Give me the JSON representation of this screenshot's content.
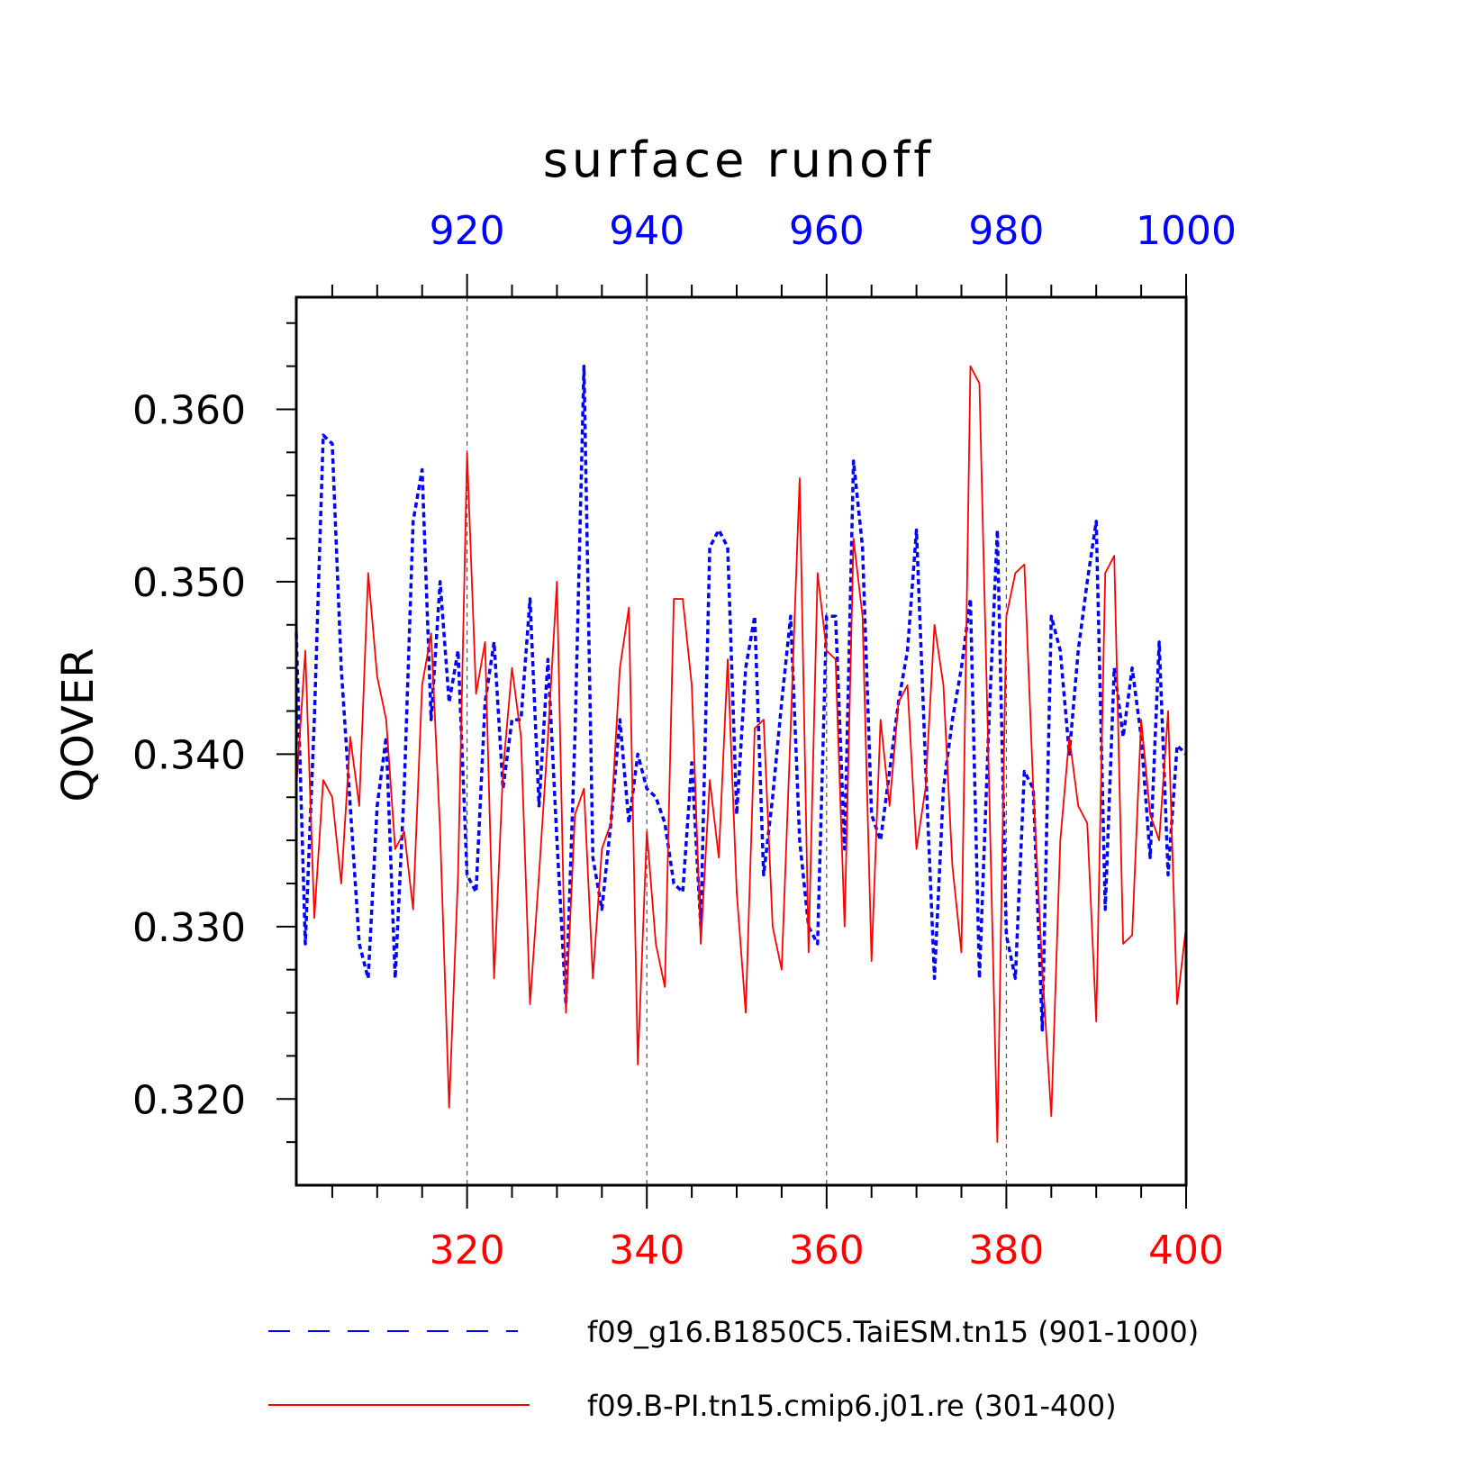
{
  "chart_data": {
    "type": "line",
    "title": "surface runoff",
    "ylabel": "QOVER",
    "ylim": [
      0.315,
      0.3665
    ],
    "y_ticks": [
      "0.320",
      "0.330",
      "0.340",
      "0.350",
      "0.360"
    ],
    "y_tick_values": [
      0.32,
      0.33,
      0.34,
      0.35,
      0.36
    ],
    "grid": "vertical dashed at major x ticks",
    "legend_position": "bottom",
    "axes": {
      "bottom": {
        "range": [
          301,
          400
        ],
        "ticks": [
          320,
          340,
          360,
          380,
          400
        ],
        "color": "#ff0000"
      },
      "top": {
        "range": [
          901,
          1000
        ],
        "ticks": [
          920,
          940,
          960,
          980,
          1000
        ],
        "color": "#0000ff"
      }
    },
    "series": [
      {
        "name": "f09_g16.B1850C5.TaiESM.tn15 (901-1000)",
        "axis": "top",
        "color": "#0000ff",
        "style": "dashed",
        "x_start": 901,
        "values": [
          0.347,
          0.329,
          0.342,
          0.3585,
          0.358,
          0.345,
          0.337,
          0.329,
          0.327,
          0.337,
          0.341,
          0.327,
          0.338,
          0.3535,
          0.3565,
          0.342,
          0.35,
          0.343,
          0.346,
          0.333,
          0.332,
          0.343,
          0.3465,
          0.338,
          0.342,
          0.342,
          0.349,
          0.337,
          0.3455,
          0.335,
          0.3255,
          0.341,
          0.3625,
          0.334,
          0.331,
          0.336,
          0.342,
          0.336,
          0.34,
          0.338,
          0.3375,
          0.336,
          0.3325,
          0.332,
          0.3395,
          0.33,
          0.352,
          0.353,
          0.352,
          0.3365,
          0.345,
          0.348,
          0.333,
          0.3375,
          0.343,
          0.348,
          0.335,
          0.33,
          0.329,
          0.348,
          0.348,
          0.3345,
          0.357,
          0.352,
          0.3365,
          0.335,
          0.339,
          0.343,
          0.346,
          0.353,
          0.3395,
          0.327,
          0.338,
          0.342,
          0.345,
          0.349,
          0.327,
          0.341,
          0.353,
          0.3295,
          0.327,
          0.339,
          0.338,
          0.324,
          0.348,
          0.346,
          0.34,
          0.346,
          0.35,
          0.3535,
          0.331,
          0.345,
          0.341,
          0.345,
          0.341,
          0.334,
          0.3465,
          0.333,
          0.3405,
          0.34
        ]
      },
      {
        "name": "f09.B-PI.tn15.cmip6.j01.re (301-400)",
        "axis": "bottom",
        "color": "#ff0000",
        "style": "solid",
        "x_start": 301,
        "values": [
          0.338,
          0.346,
          0.3305,
          0.3385,
          0.3375,
          0.3325,
          0.341,
          0.337,
          0.3505,
          0.3445,
          0.342,
          0.3345,
          0.3355,
          0.331,
          0.344,
          0.347,
          0.3355,
          0.3195,
          0.333,
          0.3575,
          0.3435,
          0.3465,
          0.327,
          0.339,
          0.345,
          0.341,
          0.3255,
          0.333,
          0.341,
          0.35,
          0.325,
          0.3365,
          0.338,
          0.327,
          0.3345,
          0.336,
          0.345,
          0.3485,
          0.322,
          0.3355,
          0.329,
          0.3265,
          0.349,
          0.349,
          0.344,
          0.329,
          0.3385,
          0.334,
          0.3455,
          0.332,
          0.325,
          0.3415,
          0.342,
          0.33,
          0.3275,
          0.3415,
          0.356,
          0.3285,
          0.3505,
          0.346,
          0.3455,
          0.33,
          0.3525,
          0.348,
          0.328,
          0.342,
          0.337,
          0.343,
          0.344,
          0.3345,
          0.338,
          0.3475,
          0.344,
          0.3335,
          0.3285,
          0.3625,
          0.3615,
          0.34,
          0.3175,
          0.348,
          0.3505,
          0.351,
          0.338,
          0.3275,
          0.319,
          0.335,
          0.341,
          0.337,
          0.336,
          0.3245,
          0.3505,
          0.3515,
          0.329,
          0.3295,
          0.342,
          0.3365,
          0.335,
          0.3425,
          0.3255,
          0.33
        ]
      }
    ]
  }
}
